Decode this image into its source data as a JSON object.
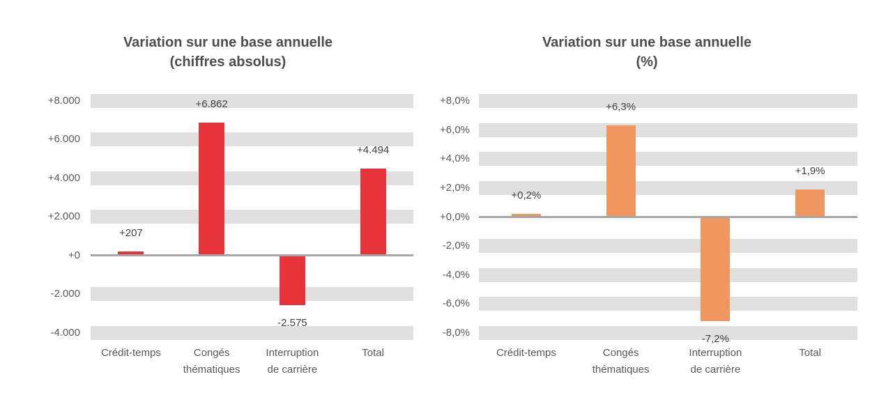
{
  "figure": {
    "background": "#ffffff"
  },
  "chart_data": [
    {
      "type": "bar",
      "title": "Variation sur une base annuelle (chiffres absolus)",
      "title_lines": [
        "Variation sur une base annuelle",
        "(chiffres absolus)"
      ],
      "categories": [
        "Crédit-temps",
        "Congés thématiques",
        "Interruption de carrière",
        "Total"
      ],
      "category_lines": [
        [
          "Crédit-temps"
        ],
        [
          "Congés",
          "thématiques"
        ],
        [
          "Interruption",
          "de carrière"
        ],
        [
          "Total"
        ]
      ],
      "category_keys": [
        "credit-temps",
        "conges-thematiques",
        "interruption-de-carriere",
        "total"
      ],
      "values": [
        207,
        6862,
        -2575,
        4494
      ],
      "data_labels": [
        "+207",
        "+6.862",
        "-2.575",
        "+4.494"
      ],
      "y_ticks": [
        {
          "value": 8000,
          "label": "+8.000"
        },
        {
          "value": 6000,
          "label": "+6.000"
        },
        {
          "value": 4000,
          "label": "+4.000"
        },
        {
          "value": 2000,
          "label": "+2.000"
        },
        {
          "value": 0,
          "label": "+0"
        },
        {
          "value": -2000,
          "label": "-2.000"
        },
        {
          "value": -4000,
          "label": "-4.000"
        }
      ],
      "ylim": [
        -4400,
        8400
      ],
      "xlabel": "",
      "ylabel": "",
      "legend": "none",
      "gridlines": "horizontal-thick-bands",
      "bar_color": "#e9333b",
      "band_color": "#e0e0e0",
      "axis_color": "#a6a6a6"
    },
    {
      "type": "bar",
      "title": "Variation sur une base annuelle (%)",
      "title_lines": [
        "Variation sur une base annuelle",
        "(%)"
      ],
      "categories": [
        "Crédit-temps",
        "Congés thématiques",
        "Interruption de carrière",
        "Total"
      ],
      "category_lines": [
        [
          "Crédit-temps"
        ],
        [
          "Congés",
          "thématiques"
        ],
        [
          "Interruption",
          "de carrière"
        ],
        [
          "Total"
        ]
      ],
      "category_keys": [
        "credit-temps",
        "conges-thematiques",
        "interruption-de-carriere",
        "total"
      ],
      "values": [
        0.2,
        6.3,
        -7.2,
        1.9
      ],
      "data_labels": [
        "+0,2%",
        "+6,3%",
        "-7,2%",
        "+1,9%"
      ],
      "y_ticks": [
        {
          "value": 8,
          "label": "+8,0%"
        },
        {
          "value": 6,
          "label": "+6,0%"
        },
        {
          "value": 4,
          "label": "+4,0%"
        },
        {
          "value": 2,
          "label": "+2,0%"
        },
        {
          "value": 0,
          "label": "+0,0%"
        },
        {
          "value": -2,
          "label": "-2,0%"
        },
        {
          "value": -4,
          "label": "-4,0%"
        },
        {
          "value": -6,
          "label": "-6,0%"
        },
        {
          "value": -8,
          "label": "-8,0%"
        }
      ],
      "ylim": [
        -8.5,
        8.5
      ],
      "xlabel": "",
      "ylabel": "",
      "legend": "none",
      "gridlines": "horizontal-thick-bands",
      "bar_color": "#f0965f",
      "band_color": "#e0e0e0",
      "axis_color": "#a6a6a6"
    }
  ]
}
